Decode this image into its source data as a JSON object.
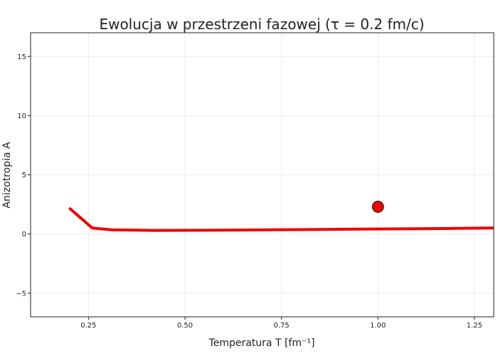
{
  "chart_data": {
    "type": "line",
    "title": "Ewolucja w przestrzeni fazowej (τ = 0.2 fm/c)",
    "xlabel": "Temperatura T [fm⁻¹]",
    "ylabel": "Anizotropia A",
    "xlim": [
      0.1,
      1.3
    ],
    "ylim": [
      -7,
      17
    ],
    "x_ticks": [
      0.25,
      0.5,
      0.75,
      1.0,
      1.25
    ],
    "x_tick_labels": [
      "0.25",
      "0.50",
      "0.75",
      "1.00",
      "1.25"
    ],
    "y_ticks": [
      -5,
      0,
      5,
      10,
      15
    ],
    "y_tick_labels": [
      "−5",
      "0",
      "5",
      "10",
      "15"
    ],
    "grid": true,
    "series": [
      {
        "color": "#ee0000",
        "x": [
          0.2,
          0.26,
          0.31,
          0.42,
          0.6,
          0.8,
          1.0,
          1.2,
          1.3
        ],
        "y": [
          2.2,
          0.5,
          0.35,
          0.3,
          0.32,
          0.37,
          0.42,
          0.47,
          0.5
        ]
      }
    ],
    "markers": [
      {
        "x": 1.0,
        "y": 2.3,
        "color": "#ee0000",
        "edge_color": "#222222"
      }
    ]
  }
}
